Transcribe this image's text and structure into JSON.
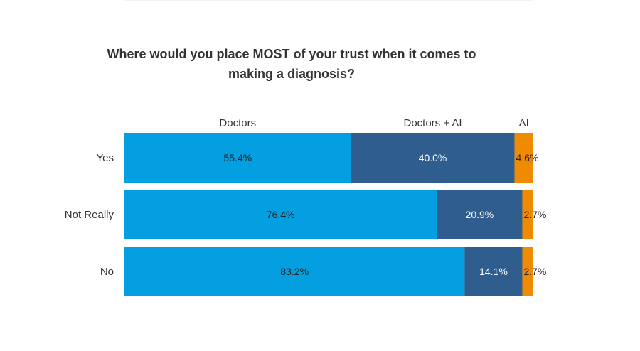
{
  "chart_data": {
    "type": "bar",
    "orientation": "horizontal",
    "stacked": true,
    "title_line1": "Where would you place MOST of your trust when it comes to",
    "title_line2": "making a diagnosis?",
    "categories": [
      "Yes",
      "Not Really",
      "No"
    ],
    "series": [
      {
        "name": "Doctors",
        "color": "#039fe0",
        "values": [
          55.4,
          76.4,
          83.2
        ],
        "labels": [
          "55.4%",
          "76.4%",
          "83.2%"
        ],
        "label_color": "#222222"
      },
      {
        "name": "Doctors + AI",
        "color": "#2e5d8e",
        "values": [
          40.0,
          20.9,
          14.1
        ],
        "labels": [
          "40.0%",
          "20.9%",
          "14.1%"
        ],
        "label_color": "#ffffff"
      },
      {
        "name": "AI",
        "color": "#f08a00",
        "values": [
          4.6,
          2.7,
          2.7
        ],
        "labels": [
          "4.6%",
          "2.7%",
          "2.7%"
        ],
        "label_color": "#222222"
      }
    ],
    "xlim": [
      0,
      100
    ],
    "legend_position": "top",
    "grid": false
  }
}
